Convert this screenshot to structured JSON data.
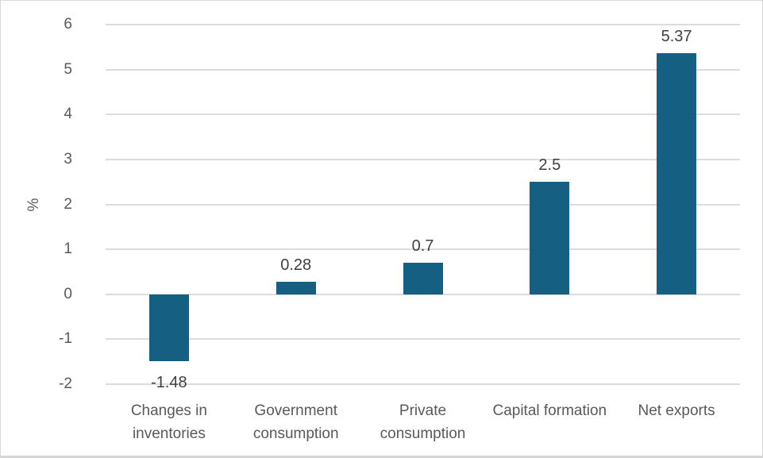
{
  "chart_data": {
    "type": "bar",
    "title": "",
    "xlabel": "",
    "ylabel": "%",
    "categories": [
      "Changes in inventories",
      "Government consumption",
      "Private consumption",
      "Capital formation",
      "Net exports"
    ],
    "values": [
      -1.48,
      0.28,
      0.7,
      2.5,
      5.37
    ],
    "data_labels": [
      "-1.48",
      "0.28",
      "0.7",
      "2.5",
      "5.37"
    ],
    "yticks": [
      6,
      5,
      4,
      3,
      2,
      1,
      0,
      -1,
      -2
    ],
    "ylim": [
      -2,
      6
    ],
    "grid": true,
    "legend": "none",
    "colors": {
      "bar_fill": "#156082",
      "gridline": "#dcdcdc",
      "tick_label": "#595959",
      "category_label": "#595959",
      "data_label": "#3f3f3f",
      "frame_border": "#d9d9d9",
      "background": "#ffffff"
    }
  }
}
